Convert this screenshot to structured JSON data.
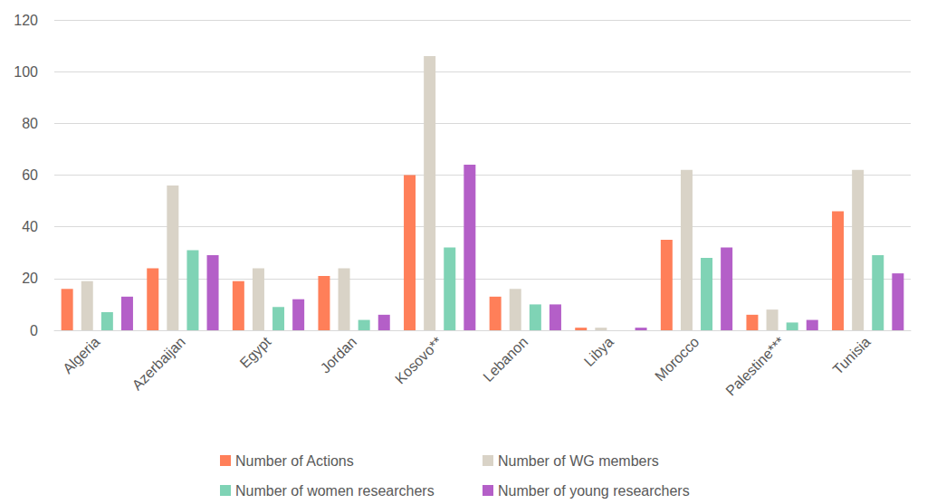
{
  "chart_data": {
    "type": "bar",
    "categories": [
      "Algeria",
      "Azerbaijan",
      "Egypt",
      "Jordan",
      "Kosovo**",
      "Lebanon",
      "Libya",
      "Morocco",
      "Palestine***",
      "Tunisia"
    ],
    "series": [
      {
        "name": "Number of Actions",
        "color": "#ff7f59",
        "values": [
          16,
          24,
          19,
          21,
          60,
          13,
          1,
          35,
          6,
          46
        ]
      },
      {
        "name": "Number of WG members",
        "color": "#d9d3c7",
        "values": [
          19,
          56,
          24,
          24,
          106,
          16,
          1,
          62,
          8,
          62
        ]
      },
      {
        "name": "Number of women researchers",
        "color": "#7fd3b5",
        "values": [
          7,
          31,
          9,
          4,
          32,
          10,
          0,
          28,
          3,
          29
        ]
      },
      {
        "name": "Number of young researchers",
        "color": "#b45fc8",
        "values": [
          13,
          29,
          12,
          6,
          64,
          10,
          1,
          32,
          4,
          22
        ]
      }
    ],
    "ylim": [
      0,
      120
    ],
    "yticks": [
      0,
      20,
      40,
      60,
      80,
      100,
      120
    ],
    "grid": true,
    "legend": "bottom"
  }
}
